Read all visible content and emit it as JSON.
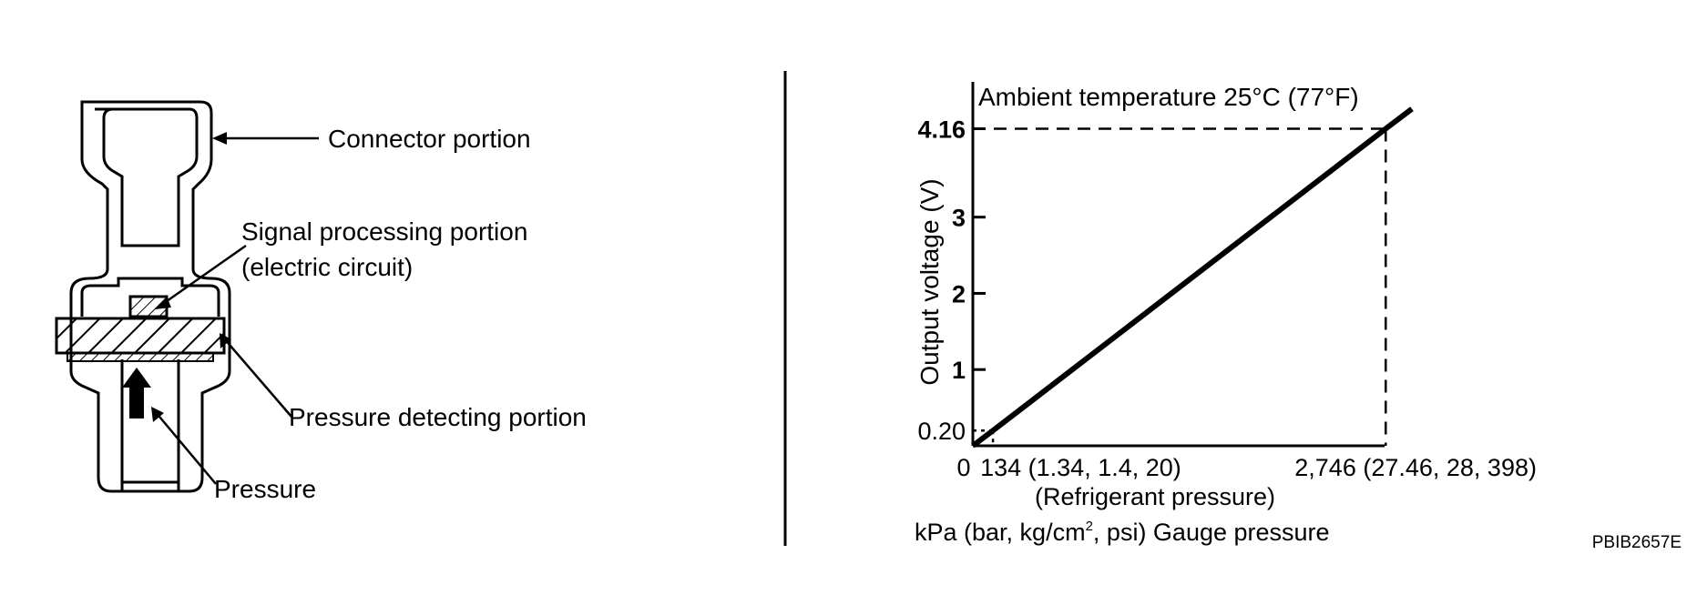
{
  "sensor_diagram": {
    "labels": {
      "connector": "Connector portion",
      "signal_line1": "Signal processing portion",
      "signal_line2": "(electric circuit)",
      "pressure_detecting": "Pressure detecting portion",
      "pressure": "Pressure"
    }
  },
  "chart_data": {
    "type": "line",
    "title": "Ambient temperature 25°C (77°F)",
    "ylabel": "Output voltage (V)",
    "xlabel_line1": "(Refrigerant pressure)",
    "xlabel_line2_before": "kPa (bar, kg/cm",
    "xlabel_line2_sup": "2",
    "xlabel_line2_after": ", psi) Gauge pressure",
    "x_ticks": [
      {
        "value": 0,
        "label": "0"
      },
      {
        "value": 134,
        "label": "134 (1.34, 1.4, 20)"
      },
      {
        "value": 2746,
        "label": "2,746 (27.46, 28, 398)"
      }
    ],
    "y_ticks": [
      {
        "value": 0.2,
        "label": "0.20"
      },
      {
        "value": 1,
        "label": "1"
      },
      {
        "value": 2,
        "label": "2"
      },
      {
        "value": 3,
        "label": "3"
      },
      {
        "value": 4.16,
        "label": "4.16"
      }
    ],
    "series": [
      {
        "x": [
          0,
          134,
          2746,
          2920
        ],
        "y": [
          0,
          0.2,
          4.16,
          4.42
        ]
      }
    ],
    "reference_points": [
      {
        "x": 134,
        "y": 0.2
      },
      {
        "x": 2746,
        "y": 4.16
      }
    ],
    "xlim": [
      0,
      2920
    ],
    "ylim": [
      0,
      4.5
    ],
    "grid": false
  },
  "figure_id": "PBIB2657E"
}
